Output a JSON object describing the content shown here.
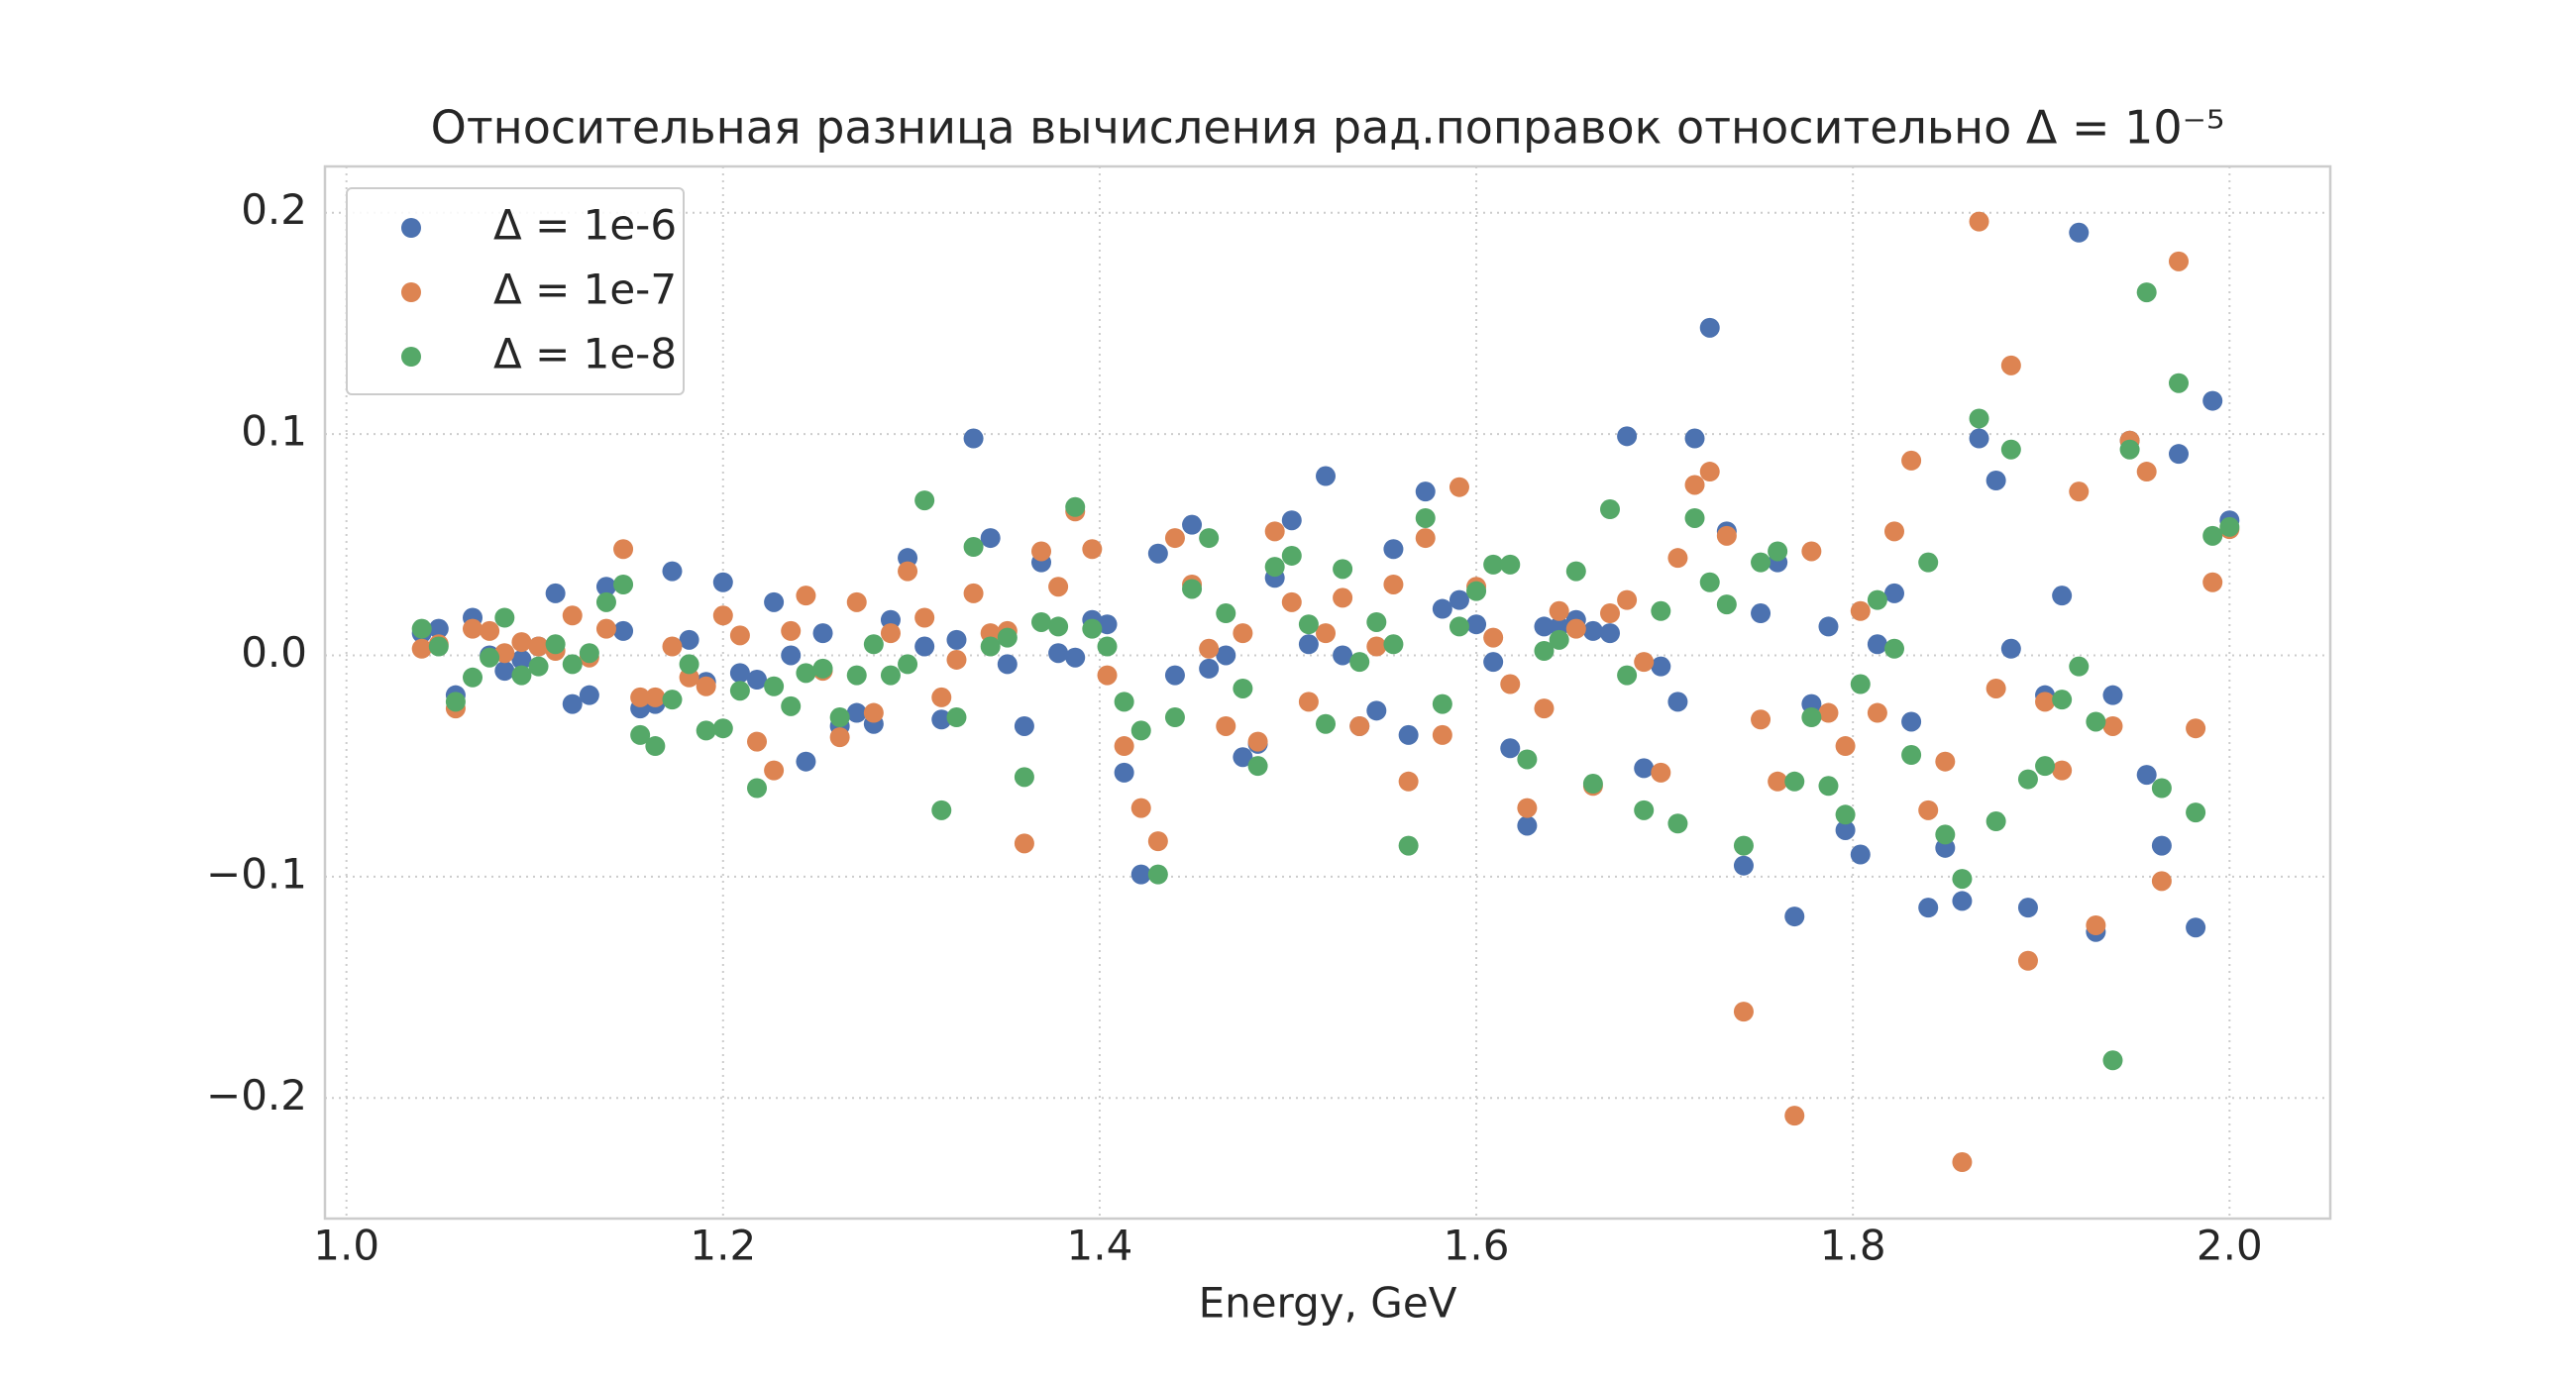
{
  "chart_data": {
    "type": "scatter",
    "title": "Относительная разница вычисления рад.поправок относительно Δ = 10⁻⁵",
    "x_label": "Energy, GeV",
    "x": [
      1.04,
      1.049,
      1.058,
      1.067,
      1.076,
      1.084,
      1.093,
      1.102,
      1.111,
      1.12,
      1.129,
      1.138,
      1.147,
      1.156,
      1.164,
      1.173,
      1.182,
      1.191,
      1.2,
      1.209,
      1.218,
      1.227,
      1.236,
      1.244,
      1.253,
      1.262,
      1.271,
      1.28,
      1.289,
      1.298,
      1.307,
      1.316,
      1.324,
      1.333,
      1.342,
      1.351,
      1.36,
      1.369,
      1.378,
      1.387,
      1.396,
      1.404,
      1.413,
      1.422,
      1.431,
      1.44,
      1.449,
      1.458,
      1.467,
      1.476,
      1.484,
      1.493,
      1.502,
      1.511,
      1.52,
      1.529,
      1.538,
      1.547,
      1.556,
      1.564,
      1.573,
      1.582,
      1.591,
      1.6,
      1.609,
      1.618,
      1.627,
      1.636,
      1.644,
      1.653,
      1.662,
      1.671,
      1.68,
      1.689,
      1.698,
      1.707,
      1.716,
      1.724,
      1.733,
      1.742,
      1.751,
      1.76,
      1.769,
      1.778,
      1.787,
      1.796,
      1.804,
      1.813,
      1.822,
      1.831,
      1.84,
      1.849,
      1.858,
      1.867,
      1.876,
      1.884,
      1.893,
      1.902,
      1.911,
      1.92,
      1.929,
      1.938,
      1.947,
      1.956,
      1.964,
      1.973,
      1.982,
      1.991,
      2.0
    ],
    "series": [
      {
        "name": "Δ = 1e-6",
        "color": "#4c72b0",
        "values": [
          0.01,
          0.012,
          -0.018,
          0.017,
          0.0,
          -0.007,
          -0.002,
          0.004,
          0.028,
          -0.022,
          -0.018,
          0.031,
          0.011,
          -0.024,
          -0.022,
          0.038,
          0.007,
          -0.012,
          0.033,
          -0.008,
          -0.011,
          0.024,
          0.0,
          -0.048,
          0.01,
          -0.032,
          -0.026,
          -0.031,
          0.016,
          0.044,
          0.004,
          -0.029,
          0.007,
          0.098,
          0.053,
          -0.004,
          -0.032,
          0.042,
          0.001,
          -0.001,
          0.016,
          0.014,
          -0.053,
          -0.099,
          0.046,
          -0.009,
          0.059,
          -0.006,
          0.0,
          -0.046,
          -0.04,
          0.035,
          0.061,
          0.005,
          0.081,
          0.0,
          -0.032,
          -0.025,
          0.048,
          -0.036,
          0.074,
          0.021,
          0.025,
          0.014,
          -0.003,
          -0.042,
          -0.077,
          0.013,
          0.013,
          0.016,
          0.011,
          0.01,
          0.099,
          -0.051,
          -0.005,
          -0.021,
          0.098,
          0.148,
          0.056,
          -0.095,
          0.019,
          0.042,
          -0.118,
          -0.022,
          0.013,
          -0.079,
          -0.09,
          0.005,
          0.028,
          -0.03,
          -0.114,
          -0.087,
          -0.111,
          0.098,
          0.079,
          0.003,
          -0.114,
          -0.018,
          0.027,
          0.191,
          -0.125,
          -0.018,
          0.097,
          -0.054,
          -0.086,
          0.091,
          -0.123,
          0.115,
          0.061
        ]
      },
      {
        "name": "Δ = 1e-7",
        "color": "#dd8452",
        "values": [
          0.003,
          0.005,
          -0.024,
          0.012,
          0.011,
          0.001,
          0.006,
          0.004,
          0.002,
          0.018,
          -0.001,
          0.012,
          0.048,
          -0.019,
          -0.019,
          0.004,
          -0.01,
          -0.014,
          0.018,
          0.009,
          -0.039,
          -0.052,
          0.011,
          0.027,
          -0.007,
          -0.037,
          0.024,
          -0.026,
          0.01,
          0.038,
          0.017,
          -0.019,
          -0.002,
          0.028,
          0.01,
          0.011,
          -0.085,
          0.047,
          0.031,
          0.065,
          0.048,
          -0.009,
          -0.041,
          -0.069,
          -0.084,
          0.053,
          0.032,
          0.003,
          -0.032,
          0.01,
          -0.039,
          0.056,
          0.024,
          -0.021,
          0.01,
          0.026,
          -0.032,
          0.004,
          0.032,
          -0.057,
          0.053,
          -0.036,
          0.076,
          0.031,
          0.008,
          -0.013,
          -0.069,
          -0.024,
          0.02,
          0.012,
          -0.059,
          0.019,
          0.025,
          -0.003,
          -0.053,
          0.044,
          0.077,
          0.083,
          0.054,
          -0.161,
          -0.029,
          -0.057,
          -0.208,
          0.047,
          -0.026,
          -0.041,
          0.02,
          -0.026,
          0.056,
          0.088,
          -0.07,
          -0.048,
          -0.229,
          0.196,
          -0.015,
          0.131,
          -0.138,
          -0.021,
          -0.052,
          0.074,
          -0.122,
          -0.032,
          0.097,
          0.083,
          -0.102,
          0.178,
          -0.033,
          0.033,
          0.057
        ]
      },
      {
        "name": "Δ = 1e-8",
        "color": "#55a868",
        "values": [
          0.012,
          0.004,
          -0.021,
          -0.01,
          -0.001,
          0.017,
          -0.009,
          -0.005,
          0.005,
          -0.004,
          0.001,
          0.024,
          0.032,
          -0.036,
          -0.041,
          -0.02,
          -0.004,
          -0.034,
          -0.033,
          -0.016,
          -0.06,
          -0.014,
          -0.023,
          -0.008,
          -0.006,
          -0.028,
          -0.009,
          0.005,
          -0.009,
          -0.004,
          0.07,
          -0.07,
          -0.028,
          0.049,
          0.004,
          0.008,
          -0.055,
          0.015,
          0.013,
          0.067,
          0.012,
          0.004,
          -0.021,
          -0.034,
          -0.099,
          -0.028,
          0.03,
          0.053,
          0.019,
          -0.015,
          -0.05,
          0.04,
          0.045,
          0.014,
          -0.031,
          0.039,
          -0.003,
          0.015,
          0.005,
          -0.086,
          0.062,
          -0.022,
          0.013,
          0.029,
          0.041,
          0.041,
          -0.047,
          0.002,
          0.007,
          0.038,
          -0.058,
          0.066,
          -0.009,
          -0.07,
          0.02,
          -0.076,
          0.062,
          0.033,
          0.023,
          -0.086,
          0.042,
          0.047,
          -0.057,
          -0.028,
          -0.059,
          -0.072,
          -0.013,
          0.025,
          0.003,
          -0.045,
          0.042,
          -0.081,
          -0.101,
          0.107,
          -0.075,
          0.093,
          -0.056,
          -0.05,
          -0.02,
          -0.005,
          -0.03,
          -0.183,
          0.093,
          0.164,
          -0.06,
          0.123,
          -0.071,
          0.054,
          0.058
        ]
      }
    ],
    "xlim": [
      0.9886,
      2.0535
    ],
    "ylim": [
      -0.2545,
      0.2209
    ],
    "xticks": [
      {
        "value": 1.0,
        "label": "1.0"
      },
      1.2,
      1.4,
      1.6,
      1.8,
      {
        "value": 2.0,
        "label": "2.0"
      }
    ],
    "yticks": [
      {
        "value": -0.2,
        "label": "−0.2"
      },
      {
        "value": -0.1,
        "label": "−0.1"
      },
      {
        "value": 0,
        "label": "0.0"
      },
      0.1,
      0.2
    ],
    "grid": true,
    "legend": "upper left"
  }
}
